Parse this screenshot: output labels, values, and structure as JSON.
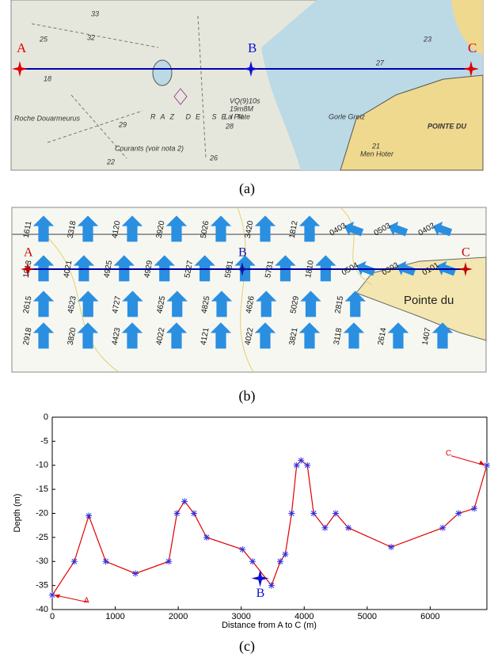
{
  "panel_a": {
    "caption": "(a)",
    "points": [
      "A",
      "B",
      "C"
    ],
    "labels": [
      "RAZ DE SEIN",
      "Courants (voir nota 2)",
      "POINTE DU",
      "La Plate",
      "Roche Douarmeurus",
      "Gorle Greiz",
      "Men Hoter",
      "VQ(9)10s",
      "19m8M",
      "33",
      "25",
      "32",
      "27",
      "23",
      "29",
      "28",
      "21",
      "26",
      "22",
      "18"
    ]
  },
  "panel_b": {
    "caption": "(b)",
    "points": [
      "A",
      "B",
      "C"
    ],
    "land_label": "Pointe du",
    "current_rows": [
      [
        "1611",
        "3318",
        "4120",
        "3920",
        "5026",
        "3420",
        "1812",
        "0403",
        "0503",
        "0402"
      ],
      [
        "1913",
        "4021",
        "4925",
        "4929",
        "5227",
        "5981",
        "5731",
        "1810",
        "0504",
        "0303",
        "0101"
      ],
      [
        "2615",
        "4523",
        "4727",
        "4625",
        "4825",
        "4626",
        "5029",
        "2815"
      ],
      [
        "2918",
        "3820",
        "4423",
        "4022",
        "4121",
        "4022",
        "3821",
        "3118",
        "2614",
        "1407"
      ]
    ]
  },
  "chart_data": {
    "type": "line",
    "caption": "(c)",
    "xlabel": "Distance from A to C (m)",
    "ylabel": "Depth (m)",
    "xlim": [
      0,
      6900
    ],
    "ylim": [
      -40,
      0
    ],
    "xticks": [
      0,
      1000,
      2000,
      3000,
      4000,
      5000,
      6000
    ],
    "yticks": [
      0,
      -5,
      -10,
      -15,
      -20,
      -25,
      -30,
      -35,
      -40
    ],
    "series": [
      {
        "color": "#e00000",
        "marker_color": "#3030e0",
        "x": [
          0,
          350,
          580,
          850,
          1320,
          1850,
          1980,
          2100,
          2250,
          2450,
          3020,
          3180,
          3480,
          3620,
          3700,
          3800,
          3880,
          3950,
          4050,
          4150,
          4330,
          4500,
          4700,
          5380,
          6200,
          6450,
          6700,
          6900
        ],
        "values": [
          -37,
          -30,
          -20.5,
          -30,
          -32.5,
          -30,
          -20,
          -17.5,
          -20,
          -25,
          -27.5,
          -30,
          -35,
          -30,
          -28.5,
          -20,
          -10,
          -9,
          -10,
          -20,
          -23,
          -20,
          -23,
          -27,
          -23,
          -20,
          -19,
          -10
        ]
      }
    ],
    "annotations": {
      "start": "A",
      "end": "C",
      "mid": {
        "text": "B",
        "x": 3300,
        "y": -33.5
      }
    }
  }
}
